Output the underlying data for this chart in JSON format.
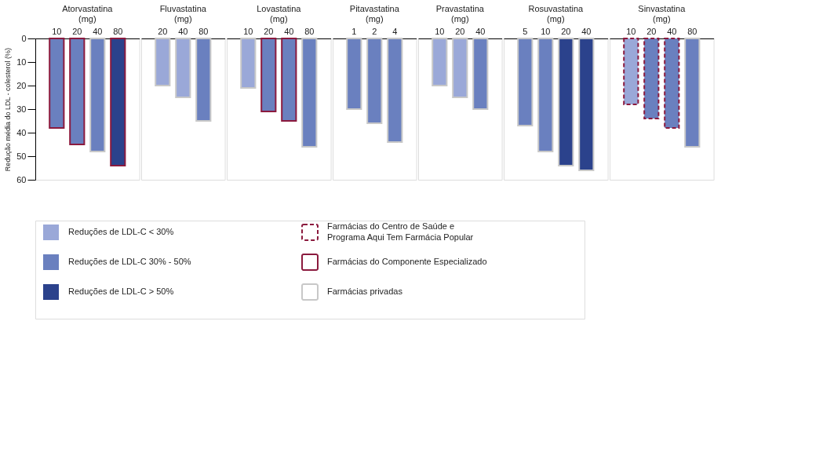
{
  "chart_data": [
    {
      "type": "bar",
      "title": "Atorvastatina (mg)",
      "ylabel": "Redução média do LDL - colesterol (%)",
      "categories": [
        "10",
        "20",
        "40",
        "80"
      ],
      "ylim": [
        60,
        0
      ],
      "yticks": [
        0,
        10,
        20,
        30,
        40,
        50,
        60
      ],
      "legend": "bottom",
      "series": [
        {
          "name": "Reduções de LDL-C < 30%",
          "color": "#9aa8d8",
          "values": [
            null,
            null,
            null,
            null
          ]
        },
        {
          "name": "Reduções de LDL-C 30% - 50%",
          "color": "#6a80bf",
          "values": [
            null,
            null,
            null,
            null
          ]
        },
        {
          "name": "Reduções de LDL-C > 50%",
          "color": "#2b428c",
          "values": [
            null,
            null,
            null,
            null
          ]
        },
        {
          "name": "Farmácias do Centro de Saúde e Programa Aqui Tem Farmácia Popular",
          "color": "#8b1a3e",
          "line_style": "dashed",
          "values": [
            null,
            null,
            null,
            null
          ],
          "colors": [
            null,
            null,
            null,
            null
          ]
        },
        {
          "name": "Farmácias do Componente Especializado",
          "color": "#8b1a3e",
          "line_style": "solid",
          "values": [
            38,
            45,
            null,
            54
          ],
          "colors": [
            "#6a80bf",
            "#6a80bf",
            null,
            "#2b428c"
          ]
        },
        {
          "name": "Farmácias privadas",
          "color": "#c8c8c8",
          "line_style": "solid",
          "values": [
            null,
            null,
            48,
            null
          ],
          "colors": [
            null,
            null,
            "#6a80bf",
            null
          ]
        }
      ]
    },
    {
      "type": "bar",
      "title": "Fluvastatina (mg)",
      "categories": [
        "20",
        "40",
        "80"
      ],
      "ylim": [
        60,
        0
      ],
      "tick_labels": "x",
      "series": [
        {
          "color": "#c8c8c8",
          "line_style": "solid",
          "values": [
            20,
            25,
            35
          ],
          "colors": [
            "#9aa8d8",
            "#9aa8d8",
            "#6a80bf"
          ]
        }
      ]
    },
    {
      "type": "bar",
      "title": "Lovastatina (mg)",
      "categories": [
        "10",
        "20",
        "40",
        "80"
      ],
      "ylim": [
        60,
        0
      ],
      "tick_labels": "x",
      "series": [
        {
          "color": "#8b1a3e",
          "line_style": "solid",
          "values": [
            null,
            31,
            35,
            null
          ],
          "colors": [
            null,
            "#6a80bf",
            "#6a80bf",
            null
          ]
        },
        {
          "color": "#c8c8c8",
          "line_style": "solid",
          "values": [
            21,
            null,
            null,
            46
          ],
          "colors": [
            "#9aa8d8",
            null,
            null,
            "#6a80bf"
          ]
        }
      ]
    },
    {
      "type": "bar",
      "title": "Pitavastatina (mg)",
      "categories": [
        "1",
        "2",
        "4"
      ],
      "ylim": [
        60,
        0
      ],
      "tick_labels": "x",
      "series": [
        {
          "color": "#c8c8c8",
          "line_style": "solid",
          "values": [
            30,
            36,
            44
          ],
          "colors": [
            "#6a80bf",
            "#6a80bf",
            "#6a80bf"
          ]
        }
      ]
    },
    {
      "type": "bar",
      "title": "Pravastatina (mg)",
      "categories": [
        "10",
        "20",
        "40"
      ],
      "ylim": [
        60,
        0
      ],
      "tick_labels": "x",
      "series": [
        {
          "color": "#c8c8c8",
          "line_style": "solid",
          "values": [
            20,
            25,
            30
          ],
          "colors": [
            "#9aa8d8",
            "#9aa8d8",
            "#6a80bf"
          ]
        }
      ]
    },
    {
      "type": "bar",
      "title": "Rosuvastatina (mg)",
      "categories": [
        "5",
        "10",
        "20",
        "40"
      ],
      "ylim": [
        60,
        0
      ],
      "tick_labels": "x",
      "series": [
        {
          "color": "#c8c8c8",
          "line_style": "solid",
          "values": [
            37,
            48,
            54,
            56
          ],
          "colors": [
            "#6a80bf",
            "#6a80bf",
            "#2b428c",
            "#2b428c"
          ]
        }
      ]
    },
    {
      "type": "bar",
      "title": "Sinvastatina (mg)",
      "categories": [
        "10",
        "20",
        "40",
        "80"
      ],
      "ylim": [
        60,
        0
      ],
      "tick_labels": "x",
      "series": [
        {
          "color": "#8b1a3e",
          "line_style": "dashed",
          "values": [
            28,
            34,
            38,
            null
          ],
          "colors": [
            "#9aa8d8",
            "#6a80bf",
            "#6a80bf",
            null
          ]
        },
        {
          "color": "#c8c8c8",
          "line_style": "solid",
          "values": [
            null,
            null,
            null,
            46
          ],
          "colors": [
            null,
            null,
            null,
            "#6a80bf"
          ]
        }
      ]
    }
  ]
}
